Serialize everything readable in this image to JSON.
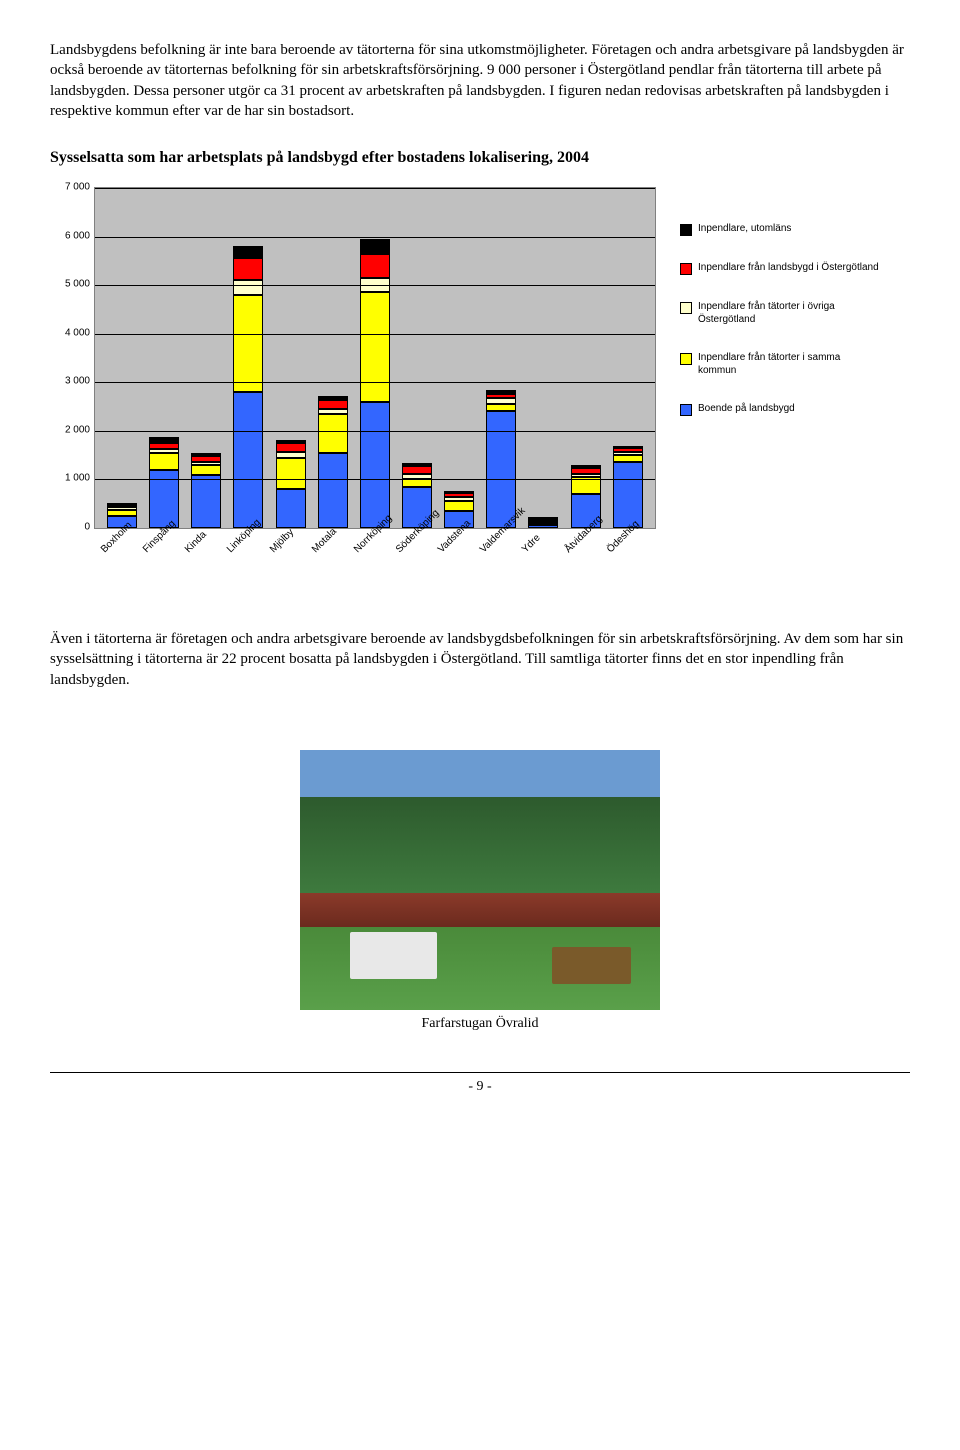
{
  "paragraph1": "Landsbygdens befolkning är inte bara beroende av tätorterna för sina utkomstmöjligheter. Företagen och andra arbetsgivare på landsbygden är också beroende av tätorternas befolkning för sin arbetskraftsförsörjning. 9 000 personer i Östergötland pendlar från tätorterna till arbete på landsbygden. Dessa personer utgör ca 31 procent av arbetskraften på landsbygden. I figuren nedan redovisas arbetskraften på landsbygden i respektive kommun efter var de har sin bostadsort.",
  "chart": {
    "title": "Sysselsatta som har arbetsplats på landsbygd efter bostadens lokalisering, 2004",
    "y_max": 7000,
    "y_ticks": [
      0,
      1000,
      2000,
      3000,
      4000,
      5000,
      6000,
      7000
    ],
    "y_tick_labels": [
      "0",
      "1 000",
      "2 000",
      "3 000",
      "4 000",
      "5 000",
      "6 000",
      "7 000"
    ],
    "plot_bg": "#c0c0c0",
    "grid_color": "#000000",
    "categories": [
      "Boxholm",
      "Finspång",
      "Kinda",
      "Linköping",
      "Mjölby",
      "Motala",
      "Norrköping",
      "Söderköping",
      "Vadstena",
      "Valdemarsvik",
      "Ydre",
      "Åtvidaberg",
      "Ödeshög"
    ],
    "series": [
      {
        "key": "boende",
        "label": "Boende på landsbygd",
        "color": "#3366ff"
      },
      {
        "key": "samma",
        "label": "Inpendlare från tätorter i samma kommun",
        "color": "#ffff00"
      },
      {
        "key": "ovriga",
        "label": "Inpendlare från tätorter i övriga Östergötland",
        "color": "#ffffcc"
      },
      {
        "key": "lansbygd_og",
        "label": "Inpendlare från landsbygd i Östergötland",
        "color": "#ff0000"
      },
      {
        "key": "utomlans",
        "label": "Inpendlare, utomläns",
        "color": "#000000"
      }
    ],
    "data": [
      {
        "boende": 250,
        "samma": 120,
        "ovriga": 60,
        "lansbygd_og": 40,
        "utomlans": 30
      },
      {
        "boende": 1200,
        "samma": 350,
        "ovriga": 80,
        "lansbygd_og": 130,
        "utomlans": 120
      },
      {
        "boende": 1100,
        "samma": 200,
        "ovriga": 60,
        "lansbygd_og": 120,
        "utomlans": 60
      },
      {
        "boende": 2800,
        "samma": 2000,
        "ovriga": 300,
        "lansbygd_og": 450,
        "utomlans": 250
      },
      {
        "boende": 800,
        "samma": 650,
        "ovriga": 120,
        "lansbygd_og": 180,
        "utomlans": 60
      },
      {
        "boende": 1550,
        "samma": 800,
        "ovriga": 100,
        "lansbygd_og": 180,
        "utomlans": 80
      },
      {
        "boende": 2600,
        "samma": 2250,
        "ovriga": 300,
        "lansbygd_og": 500,
        "utomlans": 300
      },
      {
        "boende": 850,
        "samma": 150,
        "ovriga": 120,
        "lansbygd_og": 150,
        "utomlans": 60
      },
      {
        "boende": 350,
        "samma": 200,
        "ovriga": 80,
        "lansbygd_og": 100,
        "utomlans": 40
      },
      {
        "boende": 2400,
        "samma": 150,
        "ovriga": 120,
        "lansbygd_og": 80,
        "utomlans": 100
      },
      {
        "boende": 60,
        "samma": 20,
        "ovriga": 10,
        "lansbygd_og": 10,
        "utomlans": 10
      },
      {
        "boende": 700,
        "samma": 350,
        "ovriga": 70,
        "lansbygd_og": 120,
        "utomlans": 60
      },
      {
        "boende": 1350,
        "samma": 150,
        "ovriga": 60,
        "lansbygd_og": 80,
        "utomlans": 50
      }
    ]
  },
  "paragraph2": "Även i tätorterna är företagen och andra arbetsgivare beroende av landsbygdsbefolkningen för sin arbetskraftsförsörjning. Av dem som har sin sysselsättning i tätorterna är 22 procent bosatta på landsbygden i Östergötland. Till samtliga tätorter finns det en stor inpendling från landsbygden.",
  "photo_caption": "Farfarstugan Övralid",
  "page_number": "- 9 -"
}
